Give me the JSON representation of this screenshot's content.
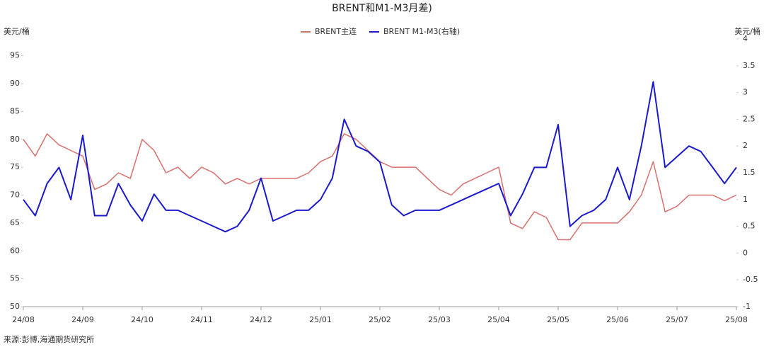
{
  "chart_data": {
    "type": "line",
    "title": "BRENT和M1-M3月差)",
    "y_label": "美元/桶",
    "y2_label": "美元/桶",
    "source": "来源:彭博,海通期货研究所",
    "x": [
      0,
      0.2,
      0.4,
      0.6,
      0.8,
      1,
      1.2,
      1.4,
      1.6,
      1.8,
      2,
      2.2,
      2.4,
      2.6,
      2.8,
      3,
      3.2,
      3.4,
      3.6,
      3.8,
      4,
      4.2,
      4.4,
      4.6,
      4.8,
      5,
      5.2,
      5.4,
      5.6,
      5.8,
      6,
      6.2,
      6.4,
      6.6,
      6.8,
      7,
      7.2,
      7.4,
      7.6,
      7.8,
      8,
      8.2,
      8.4,
      8.6,
      8.8,
      9,
      9.2,
      9.4,
      9.6,
      9.8,
      10,
      10.2,
      10.4,
      10.6,
      10.8,
      11,
      11.2,
      11.4,
      11.6,
      11.8,
      12
    ],
    "xlim": [
      0,
      12
    ],
    "xticks": [
      {
        "value": 0,
        "label": "24/08"
      },
      {
        "value": 1,
        "label": "24/09"
      },
      {
        "value": 2,
        "label": "24/10"
      },
      {
        "value": 3,
        "label": "24/11"
      },
      {
        "value": 4,
        "label": "24/12"
      },
      {
        "value": 5,
        "label": "25/01"
      },
      {
        "value": 6,
        "label": "25/02"
      },
      {
        "value": 7,
        "label": "25/03"
      },
      {
        "value": 8,
        "label": "25/04"
      },
      {
        "value": 9,
        "label": "25/05"
      },
      {
        "value": 10,
        "label": "25/06"
      },
      {
        "value": 11,
        "label": "25/07"
      },
      {
        "value": 12,
        "label": "25/08"
      }
    ],
    "ylim": [
      50,
      98
    ],
    "yticks": [
      50,
      55,
      60,
      65,
      70,
      75,
      80,
      85,
      90,
      95
    ],
    "y2lim": [
      -1,
      4
    ],
    "y2ticks": [
      -1,
      -0.5,
      0,
      0.5,
      1,
      1.5,
      2,
      2.5,
      3,
      3.5,
      4
    ],
    "series": [
      {
        "name": "BRENT主连",
        "color": "#d9706b",
        "values": [
          80,
          77,
          81,
          79,
          78,
          77,
          71,
          72,
          74,
          73,
          80,
          78,
          74,
          75,
          73,
          75,
          74,
          72,
          73,
          72,
          73,
          73,
          73,
          73,
          74,
          76,
          77,
          81,
          80,
          78,
          76,
          75,
          75,
          75,
          73,
          71,
          70,
          72,
          73,
          74,
          75,
          65,
          64,
          67,
          66,
          62,
          62,
          65,
          65,
          65,
          65,
          67,
          70,
          76,
          67,
          68,
          70,
          70,
          70,
          69,
          70
        ]
      },
      {
        "name": "BRENT M1-M3(右轴)",
        "color": "#1a1acc",
        "axis": "y2",
        "values": [
          1.0,
          0.7,
          1.3,
          1.6,
          1.0,
          2.2,
          0.7,
          0.7,
          1.3,
          0.9,
          0.6,
          1.1,
          0.8,
          0.8,
          0.7,
          0.6,
          0.5,
          0.4,
          0.5,
          0.8,
          1.4,
          0.6,
          0.7,
          0.8,
          0.8,
          1.0,
          1.4,
          2.5,
          2.0,
          1.9,
          1.7,
          0.9,
          0.7,
          0.8,
          0.8,
          0.8,
          0.9,
          1.0,
          1.1,
          1.2,
          1.3,
          0.7,
          1.1,
          1.6,
          1.6,
          2.4,
          0.5,
          0.7,
          0.8,
          1.0,
          1.6,
          1.0,
          2.0,
          3.2,
          1.6,
          1.8,
          2.0,
          1.9,
          1.6,
          1.3,
          1.6
        ]
      }
    ]
  }
}
